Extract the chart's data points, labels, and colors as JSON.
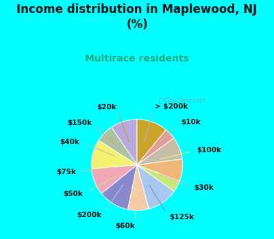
{
  "title": "Income distribution in Maplewood, NJ\n(%)",
  "subtitle": "Multirace residents",
  "bg_color": "#00ffff",
  "chart_bg": "#daf0e4",
  "labels": [
    "> $200k",
    "$10k",
    "$100k",
    "$30k",
    "$125k",
    "$60k",
    "$200k",
    "$50k",
    "$75k",
    "$40k",
    "$150k",
    "$20k"
  ],
  "sizes": [
    9.5,
    6.5,
    10.5,
    9.5,
    11.0,
    7.5,
    11.0,
    4.0,
    8.0,
    8.0,
    4.0,
    11.0
  ],
  "colors": [
    "#b8a8dd",
    "#a8c4a0",
    "#f5f070",
    "#f0a8b8",
    "#8888cc",
    "#f5cca8",
    "#a8c8f0",
    "#c8e878",
    "#f0b878",
    "#c4bea8",
    "#e89898",
    "#c8a428"
  ],
  "startangle": 90,
  "title_fontsize": 12,
  "subtitle_fontsize": 10,
  "label_fontsize": 7.5,
  "watermark": "ⓘ City-Data.com"
}
